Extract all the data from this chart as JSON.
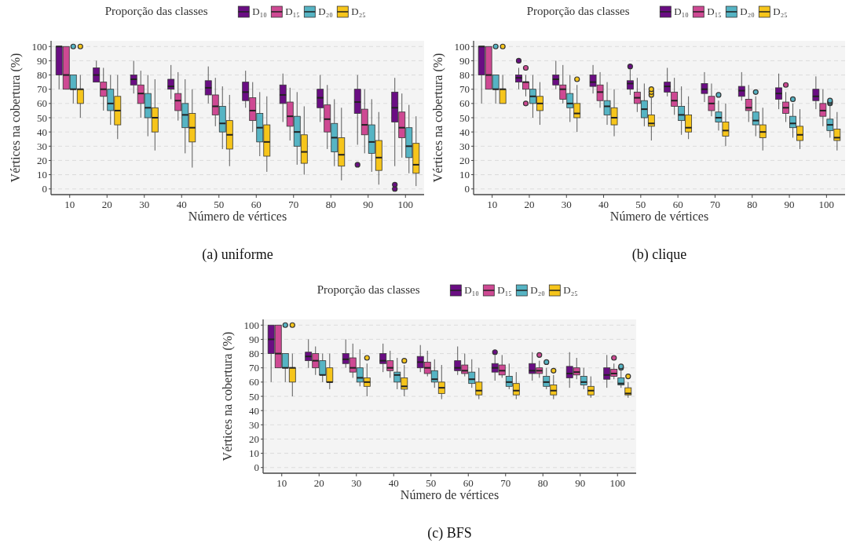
{
  "chart_data": [
    {
      "type": "box",
      "legend_title": "Proporção das classes",
      "legend": "top",
      "xlabel": "Número de vértices",
      "ylabel": "Vértices na cobertura (%)",
      "annotations": [
        "(a) uniforme"
      ],
      "categories": [
        "10",
        "20",
        "30",
        "40",
        "50",
        "60",
        "70",
        "80",
        "90",
        "100"
      ],
      "ylim": [
        -4,
        104
      ],
      "yticks": [
        0,
        10,
        20,
        30,
        40,
        50,
        60,
        70,
        80,
        90,
        100
      ],
      "grid": "y",
      "series": [
        {
          "name": "D₁₀",
          "color": "#6a0d83",
          "boxes": [
            {
              "low": 70,
              "q1": 80,
              "median": 100,
              "q3": 100,
              "high": 100
            },
            {
              "low": 75,
              "q1": 75,
              "median": 80,
              "q3": 85,
              "high": 90
            },
            {
              "low": 67,
              "q1": 73,
              "median": 77,
              "q3": 80,
              "high": 90
            },
            {
              "low": 63,
              "q1": 70,
              "median": 72,
              "q3": 77,
              "high": 87
            },
            {
              "low": 60,
              "q1": 66,
              "median": 71,
              "q3": 76,
              "high": 86
            },
            {
              "low": 57,
              "q1": 62,
              "median": 68,
              "q3": 75,
              "high": 83
            },
            {
              "low": 47,
              "q1": 60,
              "median": 66,
              "q3": 73,
              "high": 81
            },
            {
              "low": 47,
              "q1": 57,
              "median": 64,
              "q3": 70,
              "high": 80
            },
            {
              "low": 31,
              "q1": 53,
              "median": 61,
              "q3": 70,
              "high": 80,
              "outliers": [
                17
              ]
            },
            {
              "low": 16,
              "q1": 47,
              "median": 57,
              "q3": 68,
              "high": 78,
              "outliers": [
                0,
                3
              ]
            }
          ]
        },
        {
          "name": "D₁₅",
          "color": "#ce4993",
          "boxes": [
            {
              "low": 70,
              "q1": 70,
              "median": 80,
              "q3": 100,
              "high": 100
            },
            {
              "low": 55,
              "q1": 65,
              "median": 70,
              "q3": 75,
              "high": 85
            },
            {
              "low": 50,
              "q1": 60,
              "median": 67,
              "q3": 73,
              "high": 83
            },
            {
              "low": 48,
              "q1": 55,
              "median": 62,
              "q3": 67,
              "high": 82
            },
            {
              "low": 44,
              "q1": 52,
              "median": 58,
              "q3": 66,
              "high": 78
            },
            {
              "low": 40,
              "q1": 48,
              "median": 55,
              "q3": 64,
              "high": 75
            },
            {
              "low": 34,
              "q1": 44,
              "median": 51,
              "q3": 61,
              "high": 71
            },
            {
              "low": 28,
              "q1": 40,
              "median": 49,
              "q3": 59,
              "high": 73
            },
            {
              "low": 25,
              "q1": 38,
              "median": 45,
              "q3": 56,
              "high": 70
            },
            {
              "low": 22,
              "q1": 36,
              "median": 43,
              "q3": 54,
              "high": 67
            }
          ]
        },
        {
          "name": "D₂₀",
          "color": "#56b4c4",
          "boxes": [
            {
              "low": 60,
              "q1": 70,
              "median": 70,
              "q3": 80,
              "high": 80,
              "outliers": [
                100
              ]
            },
            {
              "low": 45,
              "q1": 55,
              "median": 60,
              "q3": 70,
              "high": 80
            },
            {
              "low": 37,
              "q1": 50,
              "median": 57,
              "q3": 67,
              "high": 80
            },
            {
              "low": 25,
              "q1": 43,
              "median": 52,
              "q3": 60,
              "high": 77
            },
            {
              "low": 28,
              "q1": 40,
              "median": 46,
              "q3": 58,
              "high": 72
            },
            {
              "low": 23,
              "q1": 33,
              "median": 43,
              "q3": 53,
              "high": 68
            },
            {
              "low": 17,
              "q1": 30,
              "median": 40,
              "q3": 51,
              "high": 68
            },
            {
              "low": 16,
              "q1": 26,
              "median": 36,
              "q3": 46,
              "high": 63
            },
            {
              "low": 12,
              "q1": 25,
              "median": 33,
              "q3": 45,
              "high": 63
            },
            {
              "low": 11,
              "q1": 22,
              "median": 30,
              "q3": 43,
              "high": 59
            }
          ]
        },
        {
          "name": "D₂₅",
          "color": "#f6c51b",
          "boxes": [
            {
              "low": 50,
              "q1": 60,
              "median": 70,
              "q3": 70,
              "high": 80,
              "outliers": [
                100
              ]
            },
            {
              "low": 35,
              "q1": 45,
              "median": 55,
              "q3": 65,
              "high": 80
            },
            {
              "low": 27,
              "q1": 40,
              "median": 50,
              "q3": 57,
              "high": 77
            },
            {
              "low": 15,
              "q1": 33,
              "median": 43,
              "q3": 53,
              "high": 70
            },
            {
              "low": 16,
              "q1": 28,
              "median": 38,
              "q3": 48,
              "high": 66
            },
            {
              "low": 12,
              "q1": 23,
              "median": 33,
              "q3": 45,
              "high": 65
            },
            {
              "low": 10,
              "q1": 18,
              "median": 26,
              "q3": 38,
              "high": 58
            },
            {
              "low": 6,
              "q1": 16,
              "median": 24,
              "q3": 36,
              "high": 57
            },
            {
              "low": 3,
              "q1": 13,
              "median": 22,
              "q3": 34,
              "high": 54
            },
            {
              "low": 2,
              "q1": 11,
              "median": 17,
              "q3": 32,
              "high": 51
            }
          ]
        }
      ]
    },
    {
      "type": "box",
      "legend_title": "Proporção das classes",
      "legend": "top",
      "xlabel": "Número de vértices",
      "ylabel": "Vértices na cobertura (%)",
      "annotations": [
        "(b) clique"
      ],
      "categories": [
        "10",
        "20",
        "30",
        "40",
        "50",
        "60",
        "70",
        "80",
        "90",
        "100"
      ],
      "ylim": [
        -4,
        104
      ],
      "yticks": [
        0,
        10,
        20,
        30,
        40,
        50,
        60,
        70,
        80,
        90,
        100
      ],
      "grid": "y",
      "series": [
        {
          "name": "D₁₀",
          "color": "#6a0d83",
          "boxes": [
            {
              "low": 60,
              "q1": 80,
              "median": 100,
              "q3": 100,
              "high": 100
            },
            {
              "low": 70,
              "q1": 75,
              "median": 78,
              "q3": 80,
              "high": 85,
              "outliers": [
                90
              ]
            },
            {
              "low": 70,
              "q1": 73,
              "median": 77,
              "q3": 80,
              "high": 90
            },
            {
              "low": 67,
              "q1": 72,
              "median": 75,
              "q3": 80,
              "high": 87
            },
            {
              "low": 66,
              "q1": 70,
              "median": 74,
              "q3": 76,
              "high": 84,
              "outliers": [
                86
              ]
            },
            {
              "low": 65,
              "q1": 68,
              "median": 72,
              "q3": 75,
              "high": 85
            },
            {
              "low": 61,
              "q1": 67,
              "median": 70,
              "q3": 74,
              "high": 82
            },
            {
              "low": 62,
              "q1": 65,
              "median": 69,
              "q3": 72,
              "high": 82
            },
            {
              "low": 56,
              "q1": 63,
              "median": 67,
              "q3": 71,
              "high": 81
            },
            {
              "low": 56,
              "q1": 62,
              "median": 65,
              "q3": 70,
              "high": 79
            }
          ]
        },
        {
          "name": "D₁₅",
          "color": "#ce4993",
          "boxes": [
            {
              "low": 70,
              "q1": 70,
              "median": 80,
              "q3": 100,
              "high": 100
            },
            {
              "low": 65,
              "q1": 70,
              "median": 75,
              "q3": 75,
              "high": 80,
              "outliers": [
                60,
                85
              ]
            },
            {
              "low": 60,
              "q1": 63,
              "median": 70,
              "q3": 73,
              "high": 87
            },
            {
              "low": 57,
              "q1": 62,
              "median": 68,
              "q3": 73,
              "high": 82
            },
            {
              "low": 54,
              "q1": 60,
              "median": 64,
              "q3": 68,
              "high": 78
            },
            {
              "low": 52,
              "q1": 58,
              "median": 62,
              "q3": 68,
              "high": 78
            },
            {
              "low": 51,
              "q1": 55,
              "median": 60,
              "q3": 65,
              "high": 74
            },
            {
              "low": 47,
              "q1": 55,
              "median": 57,
              "q3": 63,
              "high": 73
            },
            {
              "low": 47,
              "q1": 53,
              "median": 57,
              "q3": 61,
              "high": 68,
              "outliers": [
                73
              ]
            },
            {
              "low": 44,
              "q1": 51,
              "median": 55,
              "q3": 60,
              "high": 70
            }
          ]
        },
        {
          "name": "D₂₀",
          "color": "#56b4c4",
          "boxes": [
            {
              "low": 60,
              "q1": 70,
              "median": 70,
              "q3": 80,
              "high": 80,
              "outliers": [
                100
              ]
            },
            {
              "low": 50,
              "q1": 60,
              "median": 65,
              "q3": 70,
              "high": 80
            },
            {
              "low": 47,
              "q1": 57,
              "median": 60,
              "q3": 67,
              "high": 80
            },
            {
              "low": 45,
              "q1": 52,
              "median": 58,
              "q3": 62,
              "high": 75
            },
            {
              "low": 44,
              "q1": 50,
              "median": 56,
              "q3": 62,
              "high": 74
            },
            {
              "low": 38,
              "q1": 48,
              "median": 52,
              "q3": 58,
              "high": 72
            },
            {
              "low": 41,
              "q1": 47,
              "median": 50,
              "q3": 54,
              "high": 62,
              "outliers": [
                66
              ]
            },
            {
              "low": 37,
              "q1": 45,
              "median": 48,
              "q3": 54,
              "high": 65,
              "outliers": [
                68
              ]
            },
            {
              "low": 36,
              "q1": 43,
              "median": 46,
              "q3": 51,
              "high": 60,
              "outliers": [
                63
              ]
            },
            {
              "low": 36,
              "q1": 41,
              "median": 45,
              "q3": 49,
              "high": 58,
              "outliers": [
                60,
                61,
                62
              ]
            }
          ]
        },
        {
          "name": "D₂₅",
          "color": "#f6c51b",
          "boxes": [
            {
              "low": 60,
              "q1": 60,
              "median": 70,
              "q3": 70,
              "high": 80,
              "outliers": [
                100
              ]
            },
            {
              "low": 45,
              "q1": 55,
              "median": 60,
              "q3": 65,
              "high": 75
            },
            {
              "low": 40,
              "q1": 50,
              "median": 53,
              "q3": 60,
              "high": 73,
              "outliers": [
                77
              ]
            },
            {
              "low": 37,
              "q1": 45,
              "median": 50,
              "q3": 57,
              "high": 70
            },
            {
              "low": 34,
              "q1": 44,
              "median": 46,
              "q3": 52,
              "high": 64,
              "outliers": [
                66,
                68,
                70
              ]
            },
            {
              "low": 35,
              "q1": 40,
              "median": 43,
              "q3": 52,
              "high": 65
            },
            {
              "low": 30,
              "q1": 37,
              "median": 41,
              "q3": 47,
              "high": 60
            },
            {
              "low": 27,
              "q1": 36,
              "median": 40,
              "q3": 45,
              "high": 57
            },
            {
              "low": 28,
              "q1": 34,
              "median": 38,
              "q3": 44,
              "high": 56
            },
            {
              "low": 27,
              "q1": 34,
              "median": 36,
              "q3": 42,
              "high": 54
            }
          ]
        }
      ]
    },
    {
      "type": "box",
      "legend_title": "Proporção das classes",
      "legend": "top",
      "xlabel": "Número de vértices",
      "ylabel": "Vértices na cobertura (%)",
      "annotations": [
        "(c) BFS"
      ],
      "categories": [
        "10",
        "20",
        "30",
        "40",
        "50",
        "60",
        "70",
        "80",
        "90",
        "100"
      ],
      "ylim": [
        -4,
        104
      ],
      "yticks": [
        0,
        10,
        20,
        30,
        40,
        50,
        60,
        70,
        80,
        90,
        100
      ],
      "grid": "y",
      "series": [
        {
          "name": "D₁₀",
          "color": "#6a0d83",
          "boxes": [
            {
              "low": 60,
              "q1": 80,
              "median": 90,
              "q3": 100,
              "high": 100
            },
            {
              "low": 70,
              "q1": 75,
              "median": 78,
              "q3": 81,
              "high": 90
            },
            {
              "low": 70,
              "q1": 73,
              "median": 76,
              "q3": 80,
              "high": 90
            },
            {
              "low": 67,
              "q1": 73,
              "median": 75,
              "q3": 80,
              "high": 87
            },
            {
              "low": 67,
              "q1": 70,
              "median": 74,
              "q3": 78,
              "high": 86
            },
            {
              "low": 65,
              "q1": 68,
              "median": 70,
              "q3": 75,
              "high": 85
            },
            {
              "low": 61,
              "q1": 67,
              "median": 70,
              "q3": 73,
              "high": 79,
              "outliers": [
                81
              ]
            },
            {
              "low": 61,
              "q1": 66,
              "median": 68,
              "q3": 73,
              "high": 81
            },
            {
              "low": 56,
              "q1": 63,
              "median": 66,
              "q3": 71,
              "high": 81
            },
            {
              "low": 56,
              "q1": 62,
              "median": 65,
              "q3": 70,
              "high": 79
            }
          ]
        },
        {
          "name": "D₁₅",
          "color": "#ce4993",
          "boxes": [
            {
              "low": 70,
              "q1": 70,
              "median": 80,
              "q3": 100,
              "high": 100
            },
            {
              "low": 65,
              "q1": 70,
              "median": 75,
              "q3": 80,
              "high": 85
            },
            {
              "low": 63,
              "q1": 67,
              "median": 70,
              "q3": 77,
              "high": 87
            },
            {
              "low": 63,
              "q1": 68,
              "median": 70,
              "q3": 75,
              "high": 82
            },
            {
              "low": 64,
              "q1": 66,
              "median": 70,
              "q3": 74,
              "high": 82
            },
            {
              "low": 64,
              "q1": 66,
              "median": 68,
              "q3": 72,
              "high": 80
            },
            {
              "low": 63,
              "q1": 65,
              "median": 68,
              "q3": 72,
              "high": 79
            },
            {
              "low": 63,
              "q1": 66,
              "median": 68,
              "q3": 70,
              "high": 75,
              "outliers": [
                79
              ]
            },
            {
              "low": 62,
              "q1": 65,
              "median": 67,
              "q3": 70,
              "high": 77
            },
            {
              "low": 62,
              "q1": 64,
              "median": 66,
              "q3": 69,
              "high": 73,
              "outliers": [
                77
              ]
            }
          ]
        },
        {
          "name": "D₂₀",
          "color": "#56b4c4",
          "boxes": [
            {
              "low": 60,
              "q1": 70,
              "median": 70,
              "q3": 80,
              "high": 80,
              "outliers": [
                100
              ]
            },
            {
              "low": 60,
              "q1": 65,
              "median": 65,
              "q3": 75,
              "high": 80
            },
            {
              "low": 57,
              "q1": 60,
              "median": 63,
              "q3": 70,
              "high": 83
            },
            {
              "low": 55,
              "q1": 60,
              "median": 65,
              "q3": 67,
              "high": 77
            },
            {
              "low": 56,
              "q1": 60,
              "median": 62,
              "q3": 68,
              "high": 76
            },
            {
              "low": 56,
              "q1": 59,
              "median": 62,
              "q3": 67,
              "high": 76
            },
            {
              "low": 55,
              "q1": 57,
              "median": 60,
              "q3": 64,
              "high": 73
            },
            {
              "low": 55,
              "q1": 57,
              "median": 60,
              "q3": 64,
              "high": 70,
              "outliers": [
                74
              ]
            },
            {
              "low": 55,
              "q1": 58,
              "median": 60,
              "q3": 64,
              "high": 70
            },
            {
              "low": 56,
              "q1": 58,
              "median": 59,
              "q3": 63,
              "high": 68,
              "outliers": [
                70,
                71
              ]
            }
          ]
        },
        {
          "name": "D₂₅",
          "color": "#f6c51b",
          "boxes": [
            {
              "low": 50,
              "q1": 60,
              "median": 70,
              "q3": 70,
              "high": 80,
              "outliers": [
                100
              ]
            },
            {
              "low": 55,
              "q1": 60,
              "median": 60,
              "q3": 70,
              "high": 80
            },
            {
              "low": 50,
              "q1": 57,
              "median": 60,
              "q3": 63,
              "high": 73,
              "outliers": [
                77
              ]
            },
            {
              "low": 50,
              "q1": 55,
              "median": 57,
              "q3": 63,
              "high": 72,
              "outliers": [
                75
              ]
            },
            {
              "low": 48,
              "q1": 52,
              "median": 56,
              "q3": 60,
              "high": 72
            },
            {
              "low": 48,
              "q1": 51,
              "median": 54,
              "q3": 60,
              "high": 70
            },
            {
              "low": 48,
              "q1": 51,
              "median": 54,
              "q3": 59,
              "high": 67
            },
            {
              "low": 48,
              "q1": 51,
              "median": 54,
              "q3": 58,
              "high": 65,
              "outliers": [
                68
              ]
            },
            {
              "low": 49,
              "q1": 51,
              "median": 54,
              "q3": 57,
              "high": 64
            },
            {
              "low": 49,
              "q1": 51,
              "median": 52,
              "q3": 56,
              "high": 60,
              "outliers": [
                64
              ]
            }
          ]
        }
      ]
    }
  ]
}
